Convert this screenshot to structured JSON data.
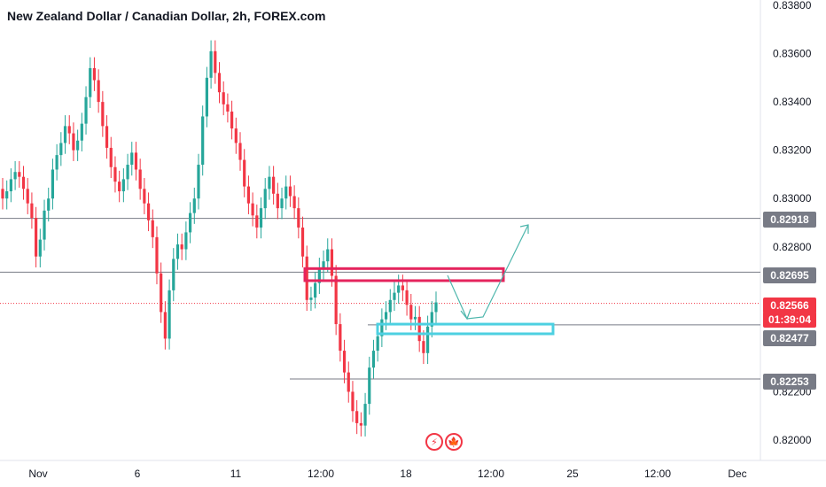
{
  "header": {
    "title": "New Zealand Dollar / Canadian Dollar, 2h, FOREX.com"
  },
  "icons": {
    "left": "lightning-icon",
    "right": "canada-flag-icon"
  },
  "colors": {
    "up": "#26a69a",
    "down": "#f23645",
    "level_line": "#787b86",
    "resistance_box": "#e5245d",
    "support_box": "#4dd0e1",
    "projection_arrow": "#4db6ac"
  },
  "chart_data": {
    "type": "candlestick",
    "title": "New Zealand Dollar / Canadian Dollar, 2h, FOREX.com",
    "xlabel": "",
    "ylabel": "",
    "ylim": [
      0.8195,
      0.838
    ],
    "y_ticks": [
      "0.83800",
      "0.83600",
      "0.83400",
      "0.83200",
      "0.83000",
      "0.82800",
      "0.82200",
      "0.82000"
    ],
    "x_ticks": [
      "Nov",
      "6",
      "11",
      "12:00",
      "18",
      "12:00",
      "25",
      "12:00",
      "Dec"
    ],
    "price_labels": [
      {
        "label": "0.82918",
        "value": 0.82918,
        "color": "#787b86"
      },
      {
        "label": "0.82695",
        "value": 0.82695,
        "color": "#787b86"
      },
      {
        "label": "0.82566",
        "value": 0.82566,
        "color": "#f23645"
      },
      {
        "label": "01:39:04",
        "value": 0.8253,
        "color": "#f23645"
      },
      {
        "label": "0.82477",
        "value": 0.82477,
        "color": "#787b86"
      },
      {
        "label": "0.82253",
        "value": 0.82253,
        "color": "#787b86"
      }
    ],
    "current_price": 0.82566,
    "countdown": "01:39:04",
    "series": [
      {
        "values": [
          0.83,
          0.8303,
          0.8308,
          0.8311,
          0.8309,
          0.8304,
          0.8298,
          0.8292,
          0.8276,
          0.8283,
          0.8295,
          0.83,
          0.8312,
          0.8318,
          0.8323,
          0.833,
          0.8327,
          0.832,
          0.8324,
          0.8331,
          0.8342,
          0.8354,
          0.8349,
          0.834,
          0.833,
          0.8321,
          0.8313,
          0.8307,
          0.8303,
          0.8308,
          0.8314,
          0.8319,
          0.8312,
          0.8304,
          0.8298,
          0.8291,
          0.8284,
          0.8269,
          0.8253,
          0.8242,
          0.8262,
          0.8275,
          0.8281,
          0.8279,
          0.8286,
          0.8294,
          0.83,
          0.8314,
          0.8334,
          0.835,
          0.8361,
          0.8352,
          0.8344,
          0.8339,
          0.8336,
          0.8329,
          0.8323,
          0.8316,
          0.8305,
          0.8298,
          0.8293,
          0.8288,
          0.8296,
          0.8304,
          0.8309,
          0.8302,
          0.8296,
          0.83,
          0.8305,
          0.8301,
          0.8296,
          0.8288,
          0.8276,
          0.8258,
          0.8259,
          0.8265,
          0.8271,
          0.8274,
          0.8279,
          0.8268,
          0.8248,
          0.8237,
          0.8228,
          0.822,
          0.8212,
          0.8207,
          0.8206,
          0.8215,
          0.823,
          0.8237,
          0.8243,
          0.825,
          0.8253,
          0.8258,
          0.8261,
          0.8264,
          0.8262,
          0.8256,
          0.825,
          0.8251,
          0.8241,
          0.8236,
          0.8247,
          0.8253,
          0.8257
        ]
      }
    ],
    "levels": [
      0.82918,
      0.82695,
      0.82477,
      0.82253
    ],
    "zones": [
      {
        "type": "resistance",
        "from": 0.8266,
        "to": 0.8271
      },
      {
        "type": "support",
        "from": 0.8244,
        "to": 0.8248
      }
    ],
    "grid": false,
    "legend": "none"
  }
}
